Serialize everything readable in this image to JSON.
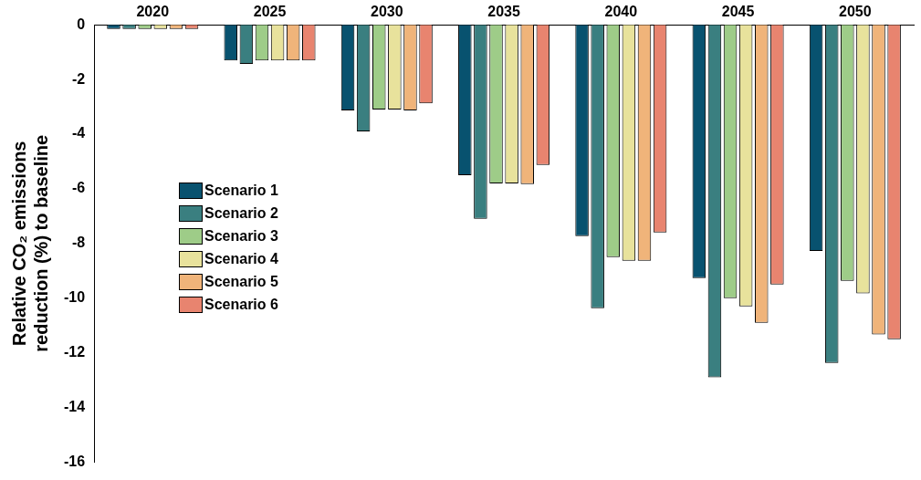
{
  "chart_data": {
    "type": "bar",
    "ylabel": "Relative CO₂ emissions reduction (%) to baseline",
    "categories": [
      "2020",
      "2025",
      "2030",
      "2035",
      "2040",
      "2045",
      "2050"
    ],
    "series": [
      {
        "name": "Scenario 1",
        "color": "#08526f",
        "values": [
          -0.15,
          -1.3,
          -3.13,
          -5.5,
          -7.73,
          -9.27,
          -8.27
        ]
      },
      {
        "name": "Scenario 2",
        "color": "#3a7f80",
        "values": [
          -0.15,
          -1.43,
          -3.9,
          -7.1,
          -10.37,
          -12.9,
          -12.37
        ]
      },
      {
        "name": "Scenario 3",
        "color": "#9ecc88",
        "values": [
          -0.15,
          -1.3,
          -3.1,
          -5.8,
          -8.5,
          -10,
          -9.37
        ]
      },
      {
        "name": "Scenario 4",
        "color": "#e8e29c",
        "values": [
          -0.15,
          -1.3,
          -3.1,
          -5.8,
          -8.63,
          -10.3,
          -9.83
        ]
      },
      {
        "name": "Scenario 5",
        "color": "#f0b47a",
        "values": [
          -0.15,
          -1.3,
          -3.13,
          -5.83,
          -8.63,
          -10.9,
          -11.33
        ]
      },
      {
        "name": "Scenario 6",
        "color": "#e8846f",
        "values": [
          -0.15,
          -1.3,
          -2.87,
          -5.13,
          -7.6,
          -9.5,
          -11.5
        ]
      }
    ],
    "ylim": [
      -16,
      0
    ],
    "yticks": [
      -16,
      -14,
      -12,
      -10,
      -8,
      -6,
      -4,
      -2,
      0
    ],
    "grid": false,
    "legend": "left"
  }
}
